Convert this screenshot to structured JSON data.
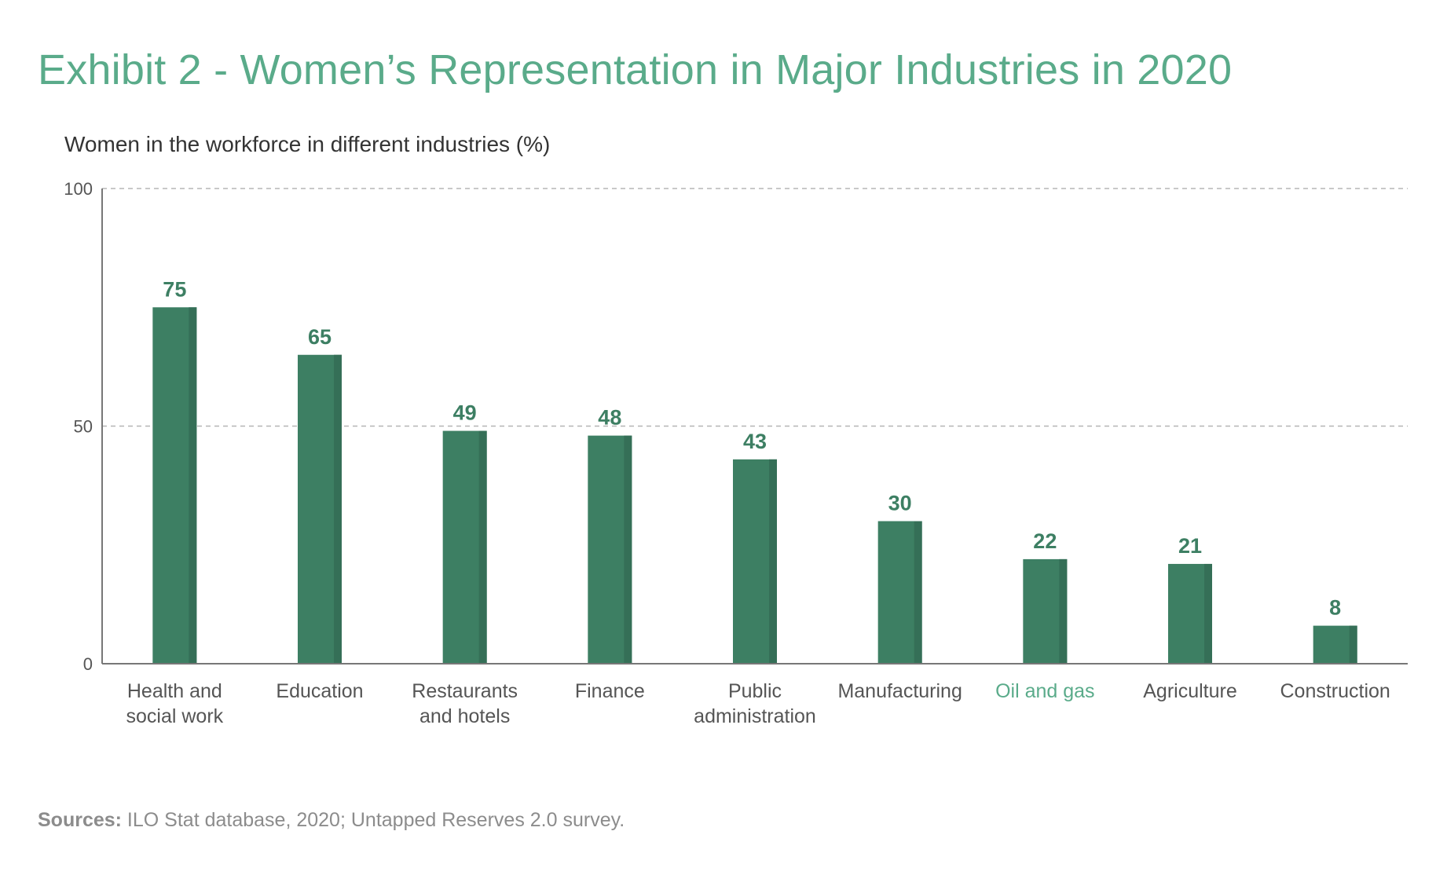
{
  "title": "Exhibit 2 - Women’s Representation in Major Industries in 2020",
  "footer": {
    "label": "Sources:",
    "text": " ILO Stat database, 2020; Untapped Reserves 2.0 survey."
  },
  "colors": {
    "bar": "#3d7f63",
    "bar_shade": "#356f57",
    "value_label": "#3d7f63",
    "title": "#5aab8a",
    "highlight_label": "#5aab8a",
    "tick_label": "#555555",
    "axis": "#777777",
    "grid": "#b5b5b5"
  },
  "chart_data": {
    "type": "bar",
    "ylabel": "Women in the workforce in different industries (%)",
    "xlabel": "",
    "ylim": [
      0,
      100
    ],
    "yticks": [
      0,
      50,
      100
    ],
    "grid": "dashed horizontal at 50 and 100",
    "categories": [
      "Health and social work",
      "Education",
      "Restaurants and hotels",
      "Finance",
      "Public administration",
      "Manufacturing",
      "Oil and gas",
      "Agriculture",
      "Construction"
    ],
    "category_lines": [
      [
        "Health and",
        "social work"
      ],
      [
        "Education"
      ],
      [
        "Restaurants",
        "and hotels"
      ],
      [
        "Finance"
      ],
      [
        "Public",
        "administration"
      ],
      [
        "Manufacturing"
      ],
      [
        "Oil and gas"
      ],
      [
        "Agriculture"
      ],
      [
        "Construction"
      ]
    ],
    "values": [
      75,
      65,
      49,
      48,
      43,
      30,
      22,
      21,
      8
    ],
    "highlight_category": "Oil and gas"
  }
}
